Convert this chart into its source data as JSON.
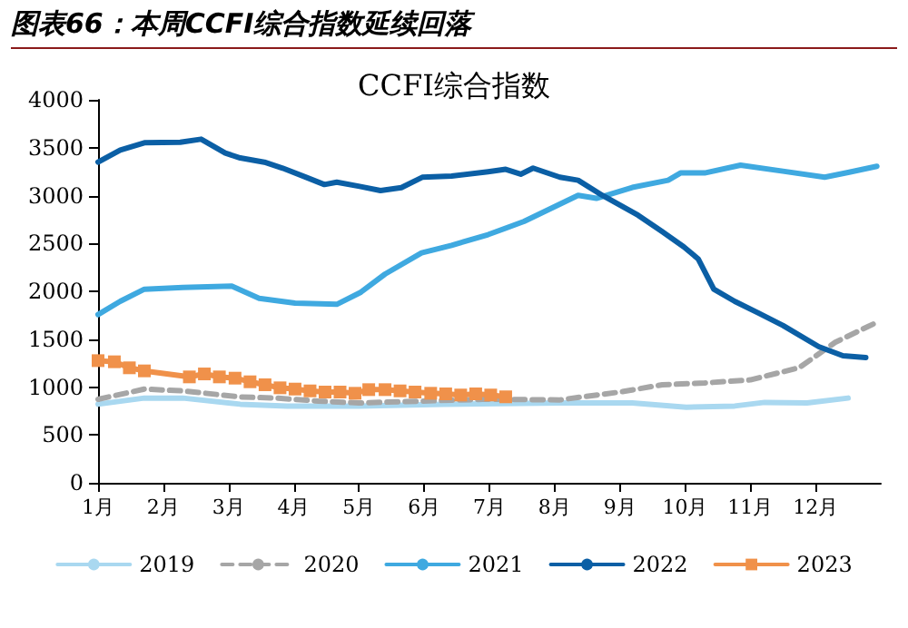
{
  "chart_data": {
    "type": "line",
    "title": "图表66：本周CCFI综合指数延续回落",
    "subtitle": "CCFI综合指数",
    "xlim": [
      1,
      13
    ],
    "xticks": [
      {
        "value": 1,
        "label": "1月"
      },
      {
        "value": 2,
        "label": "2月"
      },
      {
        "value": 3,
        "label": "3月"
      },
      {
        "value": 4,
        "label": "4月"
      },
      {
        "value": 5,
        "label": "5月"
      },
      {
        "value": 6,
        "label": "6月"
      },
      {
        "value": 7,
        "label": "7月"
      },
      {
        "value": 8,
        "label": "8月"
      },
      {
        "value": 9,
        "label": "9月"
      },
      {
        "value": 10,
        "label": "10月"
      },
      {
        "value": 11,
        "label": "11月"
      },
      {
        "value": 12,
        "label": "12月"
      }
    ],
    "ylim": [
      0,
      4000
    ],
    "yticks": [
      0,
      500,
      1000,
      1500,
      2000,
      2500,
      3000,
      3500,
      4000
    ],
    "grid": false,
    "legend": "bottom",
    "series": [
      {
        "name": "2019",
        "color": "#a9d8f0",
        "line_style": "solid",
        "marker": "none",
        "x": [
          1,
          1.71,
          2.3,
          3.18,
          3.9,
          5,
          6.3,
          8.08,
          9.19,
          10.02,
          10.76,
          11.22,
          11.87,
          12.5
        ],
        "values": [
          821,
          885,
          885,
          821,
          802,
          802,
          821,
          834,
          834,
          790,
          802,
          840,
          834,
          885
        ]
      },
      {
        "name": "2020",
        "color": "#a6a6a6",
        "line_style": "dashed",
        "marker": "none",
        "x": [
          1,
          1.71,
          2.3,
          3.18,
          3.73,
          4.38,
          5,
          5.96,
          6.9,
          8.08,
          9,
          9.65,
          10.3,
          11,
          11.75,
          12.3,
          12.94
        ],
        "values": [
          872,
          979,
          960,
          897,
          885,
          853,
          834,
          853,
          872,
          866,
          948,
          1024,
          1043,
          1075,
          1202,
          1467,
          1676
        ]
      },
      {
        "name": "2021",
        "color": "#3fa9e0",
        "line_style": "solid",
        "marker": "none",
        "x": [
          1,
          1.34,
          1.71,
          2.3,
          3.05,
          3.47,
          4.02,
          4.66,
          5.03,
          5.4,
          5.96,
          6.42,
          6.98,
          7.53,
          8.36,
          8.64,
          9.19,
          9.74,
          9.93,
          10.3,
          10.85,
          11.5,
          12.14,
          12.5,
          12.94
        ],
        "values": [
          1757,
          1896,
          2022,
          2041,
          2054,
          1927,
          1877,
          1864,
          1991,
          2180,
          2401,
          2480,
          2592,
          2730,
          3003,
          2971,
          3085,
          3160,
          3236,
          3236,
          3318,
          3255,
          3192,
          3242,
          3306
        ]
      },
      {
        "name": "2022",
        "color": "#0b5fa5",
        "line_style": "solid",
        "marker": "none",
        "x": [
          1,
          1.34,
          1.71,
          2.26,
          2.58,
          2.95,
          3.18,
          3.55,
          3.83,
          4.19,
          4.47,
          4.66,
          5.01,
          5.33,
          5.65,
          5.97,
          6.42,
          6.98,
          7.25,
          7.48,
          7.67,
          8.08,
          8.36,
          8.73,
          9.28,
          9.65,
          9.98,
          10.2,
          10.44,
          10.76,
          11.13,
          11.5,
          12.05,
          12.42,
          12.77
        ],
        "values": [
          3349,
          3476,
          3551,
          3557,
          3589,
          3444,
          3393,
          3349,
          3286,
          3191,
          3115,
          3140,
          3096,
          3052,
          3083,
          3191,
          3204,
          3249,
          3274,
          3223,
          3287,
          3192,
          3160,
          3003,
          2794,
          2623,
          2465,
          2339,
          2023,
          1896,
          1771,
          1644,
          1422,
          1327,
          1308
        ]
      },
      {
        "name": "2023",
        "color": "#f0914a",
        "line_style": "solid",
        "marker": "square",
        "x": [
          1,
          1.25,
          1.48,
          1.71,
          2.4,
          2.63,
          2.86,
          3.1,
          3.33,
          3.56,
          3.79,
          4.02,
          4.25,
          4.48,
          4.71,
          4.94,
          5.15,
          5.4,
          5.63,
          5.86,
          6.1,
          6.33,
          6.56,
          6.79,
          7.02,
          7.25
        ],
        "values": [
          1276,
          1264,
          1201,
          1169,
          1106,
          1137,
          1106,
          1093,
          1055,
          1024,
          992,
          979,
          960,
          948,
          948,
          935,
          973,
          973,
          960,
          948,
          935,
          929,
          917,
          929,
          917,
          898
        ]
      }
    ]
  }
}
